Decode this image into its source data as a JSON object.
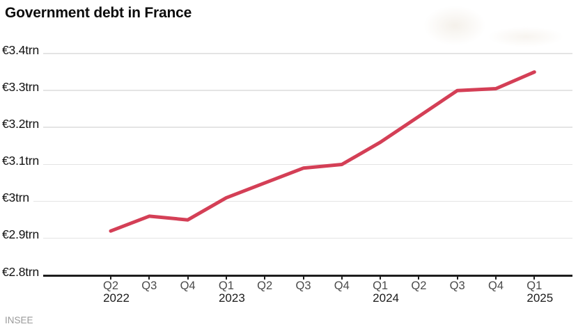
{
  "header": {
    "title": "Government debt in France"
  },
  "source": "INSEE",
  "colors": {
    "background": "#ffffff",
    "line": "#d43f56",
    "grid": "#e4e4e4",
    "axis": "#1d1d1d",
    "title_text": "#0c0c0c",
    "axis_label_text": "#121212",
    "tick_label_text": "#4a4a4a",
    "year_label_text": "#1b1b1b",
    "source_text": "#9a9a9a"
  },
  "chart_data": {
    "type": "line",
    "title": "Government debt in France",
    "series_name": "Government debt",
    "unit": "trillion euros",
    "x": [
      "Q2 2022",
      "Q3 2022",
      "Q4 2022",
      "Q1 2023",
      "Q2 2023",
      "Q3 2023",
      "Q4 2023",
      "Q1 2024",
      "Q2 2024",
      "Q3 2024",
      "Q4 2024",
      "Q1 2025"
    ],
    "values": [
      2.92,
      2.96,
      2.95,
      3.01,
      3.05,
      3.09,
      3.1,
      3.16,
      3.23,
      3.3,
      3.305,
      3.35
    ],
    "x_ticks": [
      {
        "label": "Q2",
        "year": "2022"
      },
      {
        "label": "Q3"
      },
      {
        "label": "Q4"
      },
      {
        "label": "Q1",
        "year": "2023"
      },
      {
        "label": "Q2"
      },
      {
        "label": "Q3"
      },
      {
        "label": "Q4"
      },
      {
        "label": "Q1",
        "year": "2024"
      },
      {
        "label": "Q2"
      },
      {
        "label": "Q3"
      },
      {
        "label": "Q4"
      },
      {
        "label": "Q1",
        "year": "2025"
      }
    ],
    "y_ticks": [
      {
        "value": 3.4,
        "label": "€3.4trn"
      },
      {
        "value": 3.3,
        "label": "€3.3trn"
      },
      {
        "value": 3.2,
        "label": "€3.2trn"
      },
      {
        "value": 3.1,
        "label": "€3.1trn"
      },
      {
        "value": 3.0,
        "label": "€3trn"
      },
      {
        "value": 2.9,
        "label": "€2.9trn"
      },
      {
        "value": 2.8,
        "label": "€2.8trn"
      }
    ],
    "ylim": [
      2.8,
      3.4
    ],
    "grid": "horizontal",
    "legend": "none",
    "source": "INSEE"
  }
}
